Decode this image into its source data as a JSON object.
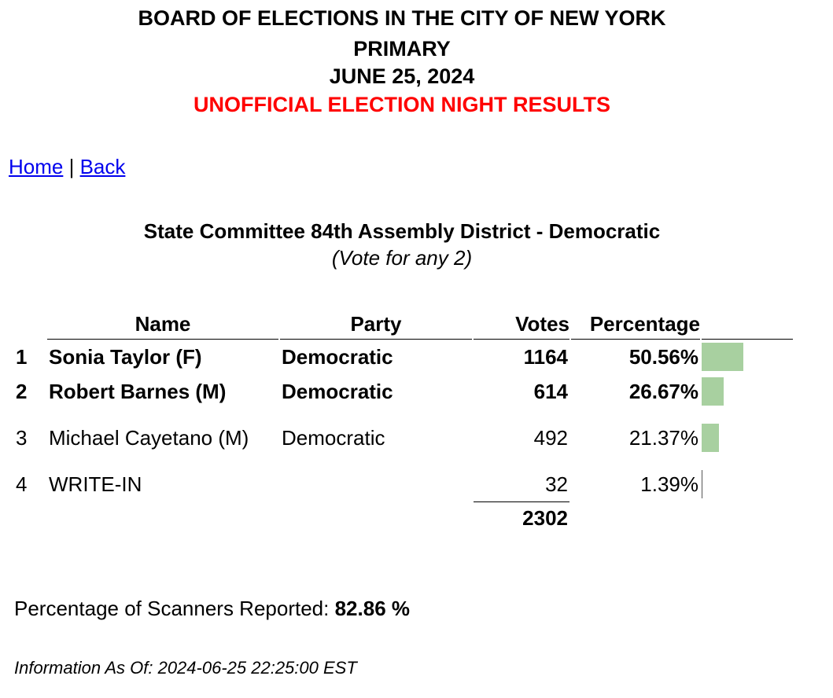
{
  "header": {
    "line1": "BOARD OF ELECTIONS IN THE CITY OF NEW YORK",
    "line2": "PRIMARY",
    "line3": "JUNE 25, 2024",
    "line4": "UNOFFICIAL ELECTION NIGHT RESULTS"
  },
  "nav": {
    "home": "Home",
    "separator": "|",
    "back": "Back"
  },
  "contest": {
    "title": "State Committee 84th Assembly District - Democratic",
    "note": "(Vote for any 2)"
  },
  "table": {
    "headers": [
      "Name",
      "Party",
      "Votes",
      "Percentage"
    ],
    "rows": [
      {
        "rank": 1,
        "name": "Sonia Taylor (F)",
        "party": "Democratic",
        "votes": 1164,
        "percentage": {
          "value": 50.56,
          "label": "50.56%"
        }
      },
      {
        "rank": 2,
        "name": "Robert Barnes (M)",
        "party": "Democratic",
        "votes": 614,
        "percentage": {
          "value": 26.67,
          "label": "26.67%"
        }
      },
      {
        "rank": 3,
        "name": "Michael Cayetano (M)",
        "party": "Democratic",
        "votes": 492,
        "percentage": {
          "value": 21.37,
          "label": "21.37%"
        }
      },
      {
        "rank": 4,
        "name": "WRITE-IN",
        "votes": 32,
        "percentage": {
          "value": 1.39,
          "label": "1.39%"
        }
      }
    ],
    "total": 2302
  },
  "scanners": {
    "label": "Percentage of Scanners Reported:",
    "value": "82.86 %"
  },
  "info": "Information As Of: 2024-06-25 22:25:00 EST"
}
